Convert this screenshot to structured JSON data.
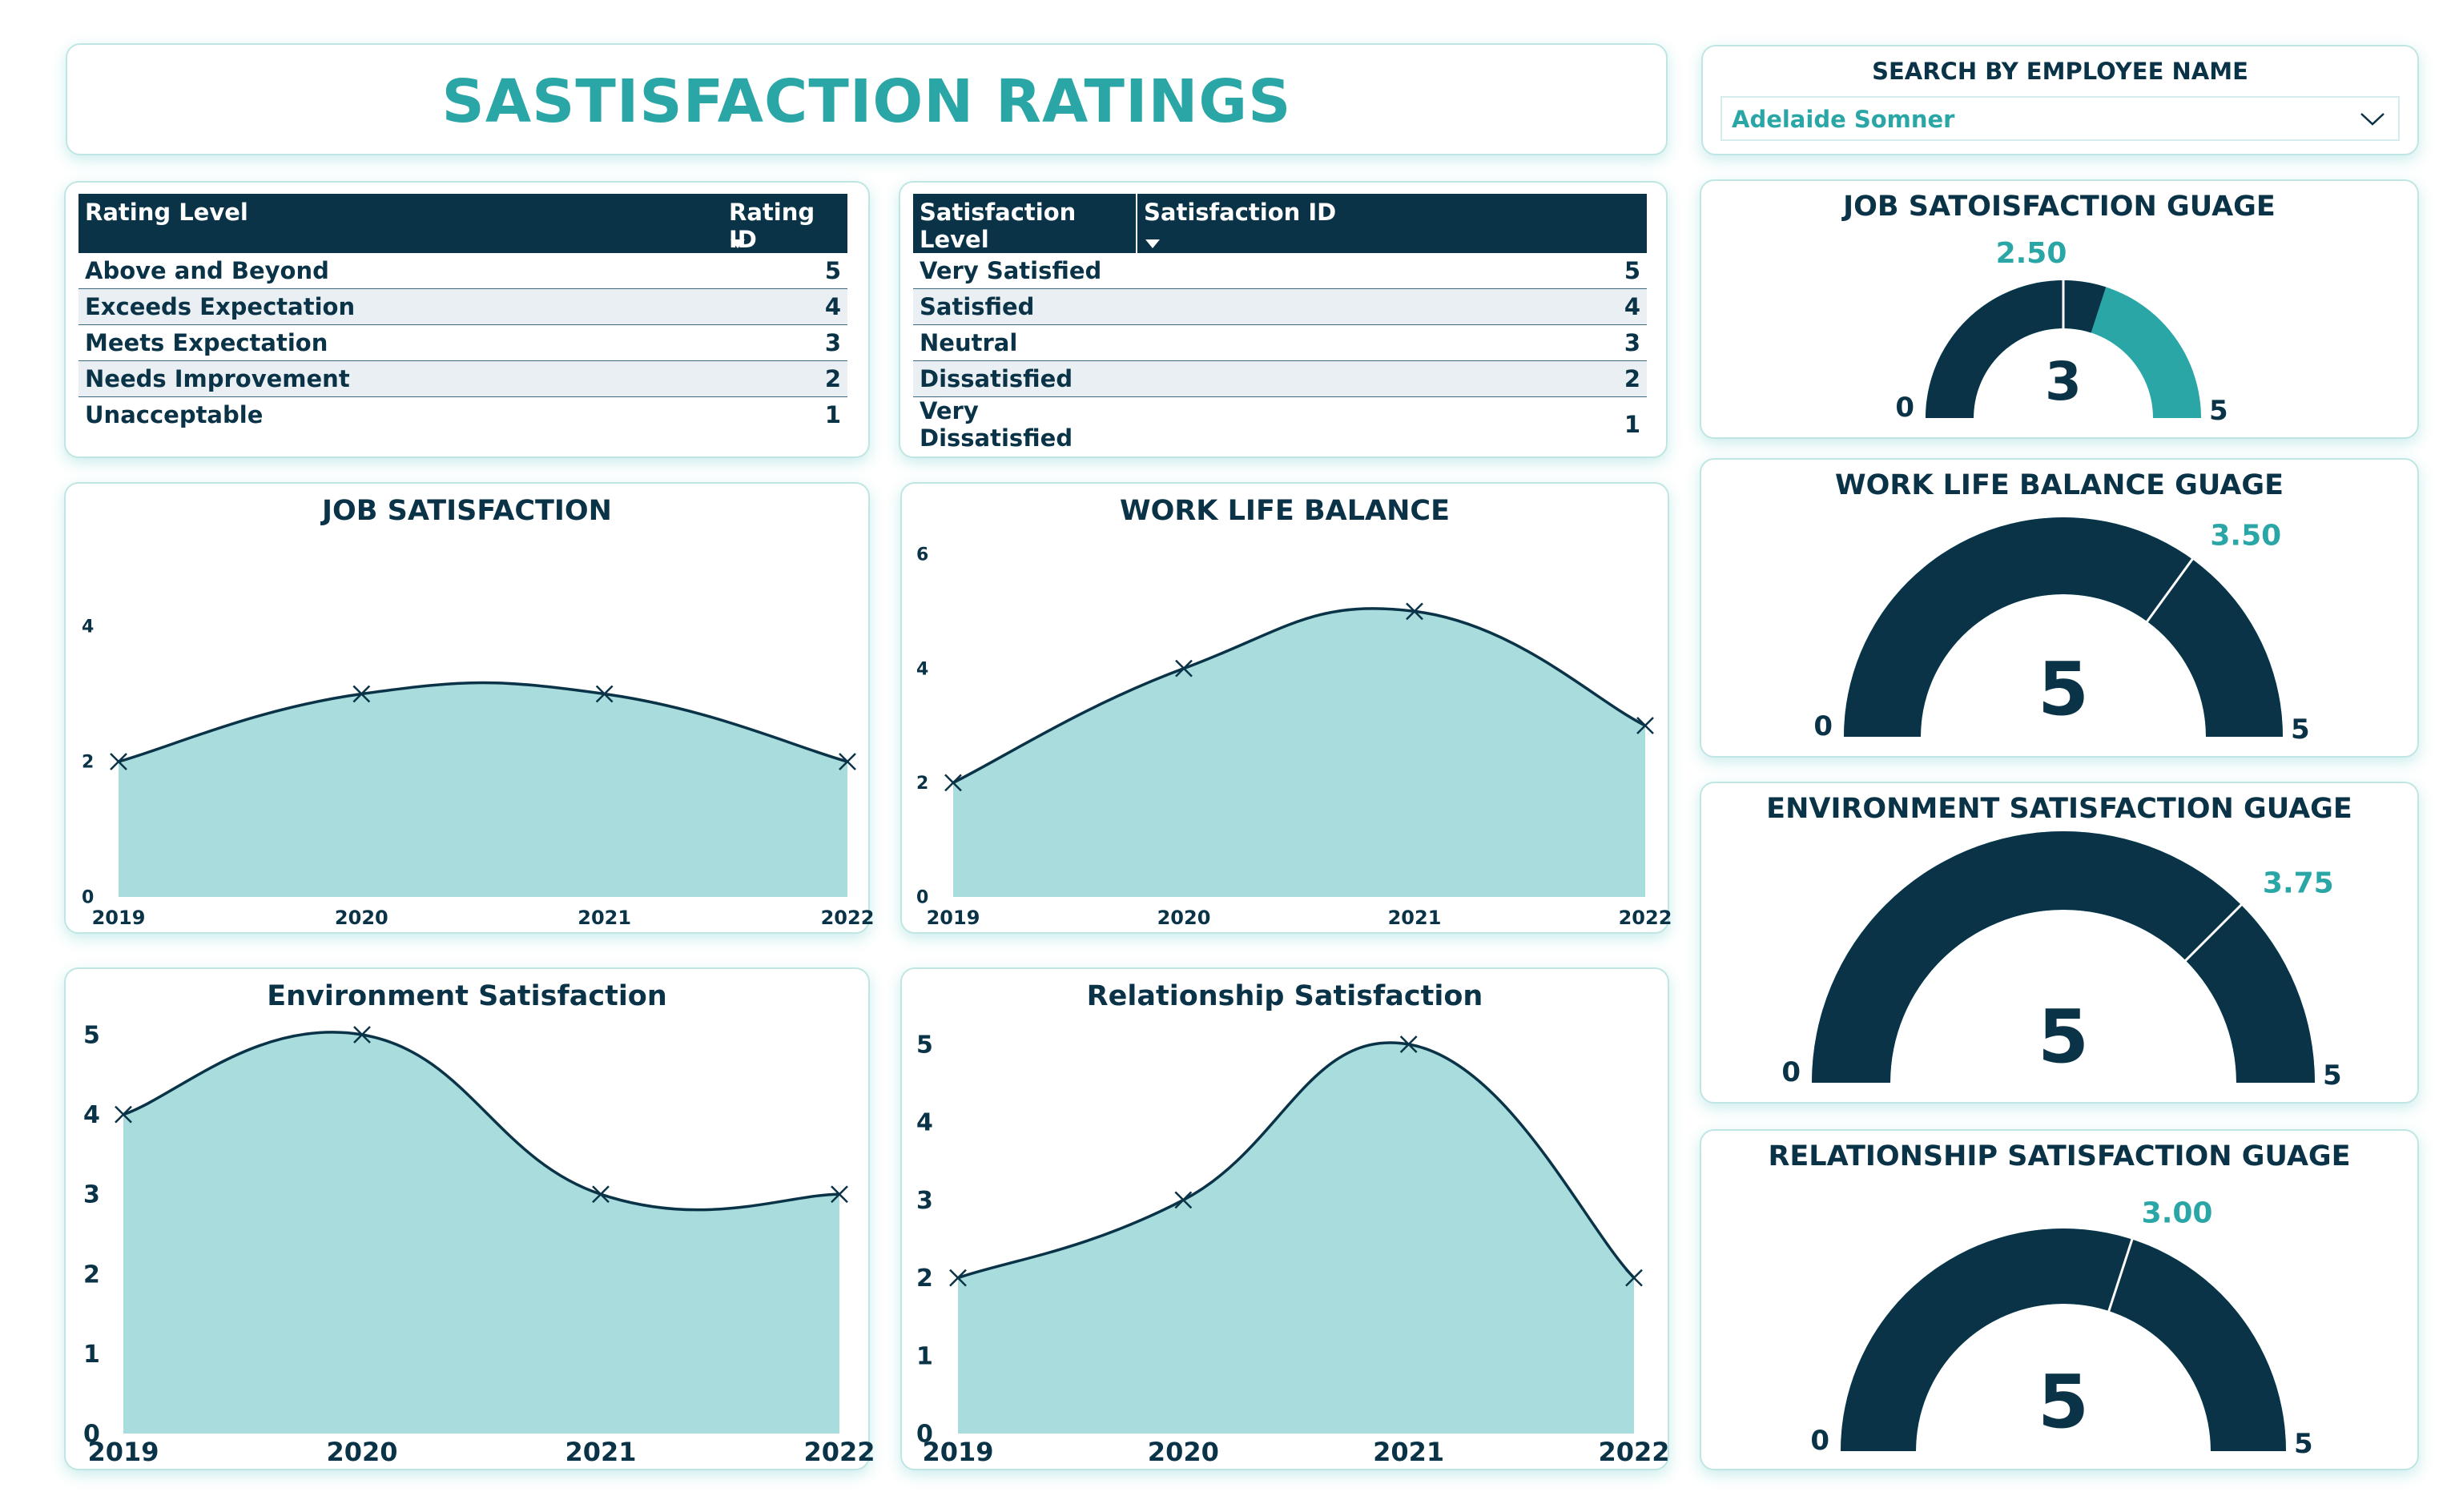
{
  "header": {
    "title": "SASTISFACTION RATINGS"
  },
  "search": {
    "label": "SEARCH BY EMPLOYEE NAME",
    "value": "Adelaide Somner"
  },
  "rating_table": {
    "headers": [
      "Rating Level",
      "Rating ID"
    ],
    "rows": [
      {
        "level": "Above and Beyond",
        "id": "5"
      },
      {
        "level": "Exceeds Expectation",
        "id": "4"
      },
      {
        "level": "Meets Expectation",
        "id": "3"
      },
      {
        "level": "Needs Improvement",
        "id": "2"
      },
      {
        "level": "Unacceptable",
        "id": "1"
      }
    ]
  },
  "satisfaction_table": {
    "headers": [
      "Satisfaction Level",
      "Satisfaction ID"
    ],
    "rows": [
      {
        "level": "Very Satisfied",
        "id": "5"
      },
      {
        "level": "Satisfied",
        "id": "4"
      },
      {
        "level": "Neutral",
        "id": "3"
      },
      {
        "level": "Dissatisfied",
        "id": "2"
      },
      {
        "level": "Very Dissatisfied",
        "id": "1"
      }
    ]
  },
  "colors": {
    "navy": "#0a3347",
    "teal": "#2ba6a6",
    "area_fill": "#a9dcdd"
  },
  "chart_data": [
    {
      "type": "area",
      "title": "JOB SATISFACTION",
      "categories": [
        "2019",
        "2020",
        "2021",
        "2022"
      ],
      "values": [
        2,
        3,
        3,
        2
      ],
      "ylim": [
        0,
        4
      ],
      "yticks": [
        0,
        2,
        4
      ],
      "xlabel": "",
      "ylabel": "",
      "grid": false
    },
    {
      "type": "area",
      "title": "WORK LIFE BALANCE",
      "categories": [
        "2019",
        "2020",
        "2021",
        "2022"
      ],
      "values": [
        2,
        4,
        5,
        3
      ],
      "ylim": [
        0,
        6
      ],
      "yticks": [
        0,
        2,
        4,
        6
      ],
      "xlabel": "",
      "ylabel": "",
      "grid": false
    },
    {
      "type": "area",
      "title": "Environment Satisfaction",
      "categories": [
        "2019",
        "2020",
        "2021",
        "2022"
      ],
      "values": [
        4,
        5,
        3,
        3
      ],
      "ylim": [
        0,
        5
      ],
      "yticks": [
        0,
        1,
        2,
        3,
        4,
        5
      ],
      "xlabel": "",
      "ylabel": "",
      "grid": false
    },
    {
      "type": "area",
      "title": "Relationship Satisfaction",
      "categories": [
        "2019",
        "2020",
        "2021",
        "2022"
      ],
      "values": [
        2,
        3,
        5,
        2
      ],
      "ylim": [
        0,
        5
      ],
      "yticks": [
        0,
        1,
        2,
        3,
        4,
        5
      ],
      "xlabel": "",
      "ylabel": "",
      "grid": false
    }
  ],
  "gauges": [
    {
      "title": "JOB SATOISFACTION GUAGE",
      "value": 3,
      "value_label": "3",
      "target": 2.5,
      "target_label": "2.50",
      "min": 0,
      "max": 5,
      "min_label": "0",
      "max_label": "5"
    },
    {
      "title": "WORK LIFE BALANCE GUAGE",
      "value": 5,
      "value_label": "5",
      "target": 3.5,
      "target_label": "3.50",
      "min": 0,
      "max": 5,
      "min_label": "0",
      "max_label": "5"
    },
    {
      "title": "ENVIRONMENT SATISFACTION GUAGE",
      "value": 5,
      "value_label": "5",
      "target": 3.75,
      "target_label": "3.75",
      "min": 0,
      "max": 5,
      "min_label": "0",
      "max_label": "5"
    },
    {
      "title": "RELATIONSHIP SATISFACTION GUAGE",
      "value": 5,
      "value_label": "5",
      "target": 3.0,
      "target_label": "3.00",
      "min": 0,
      "max": 5,
      "min_label": "0",
      "max_label": "5"
    }
  ]
}
